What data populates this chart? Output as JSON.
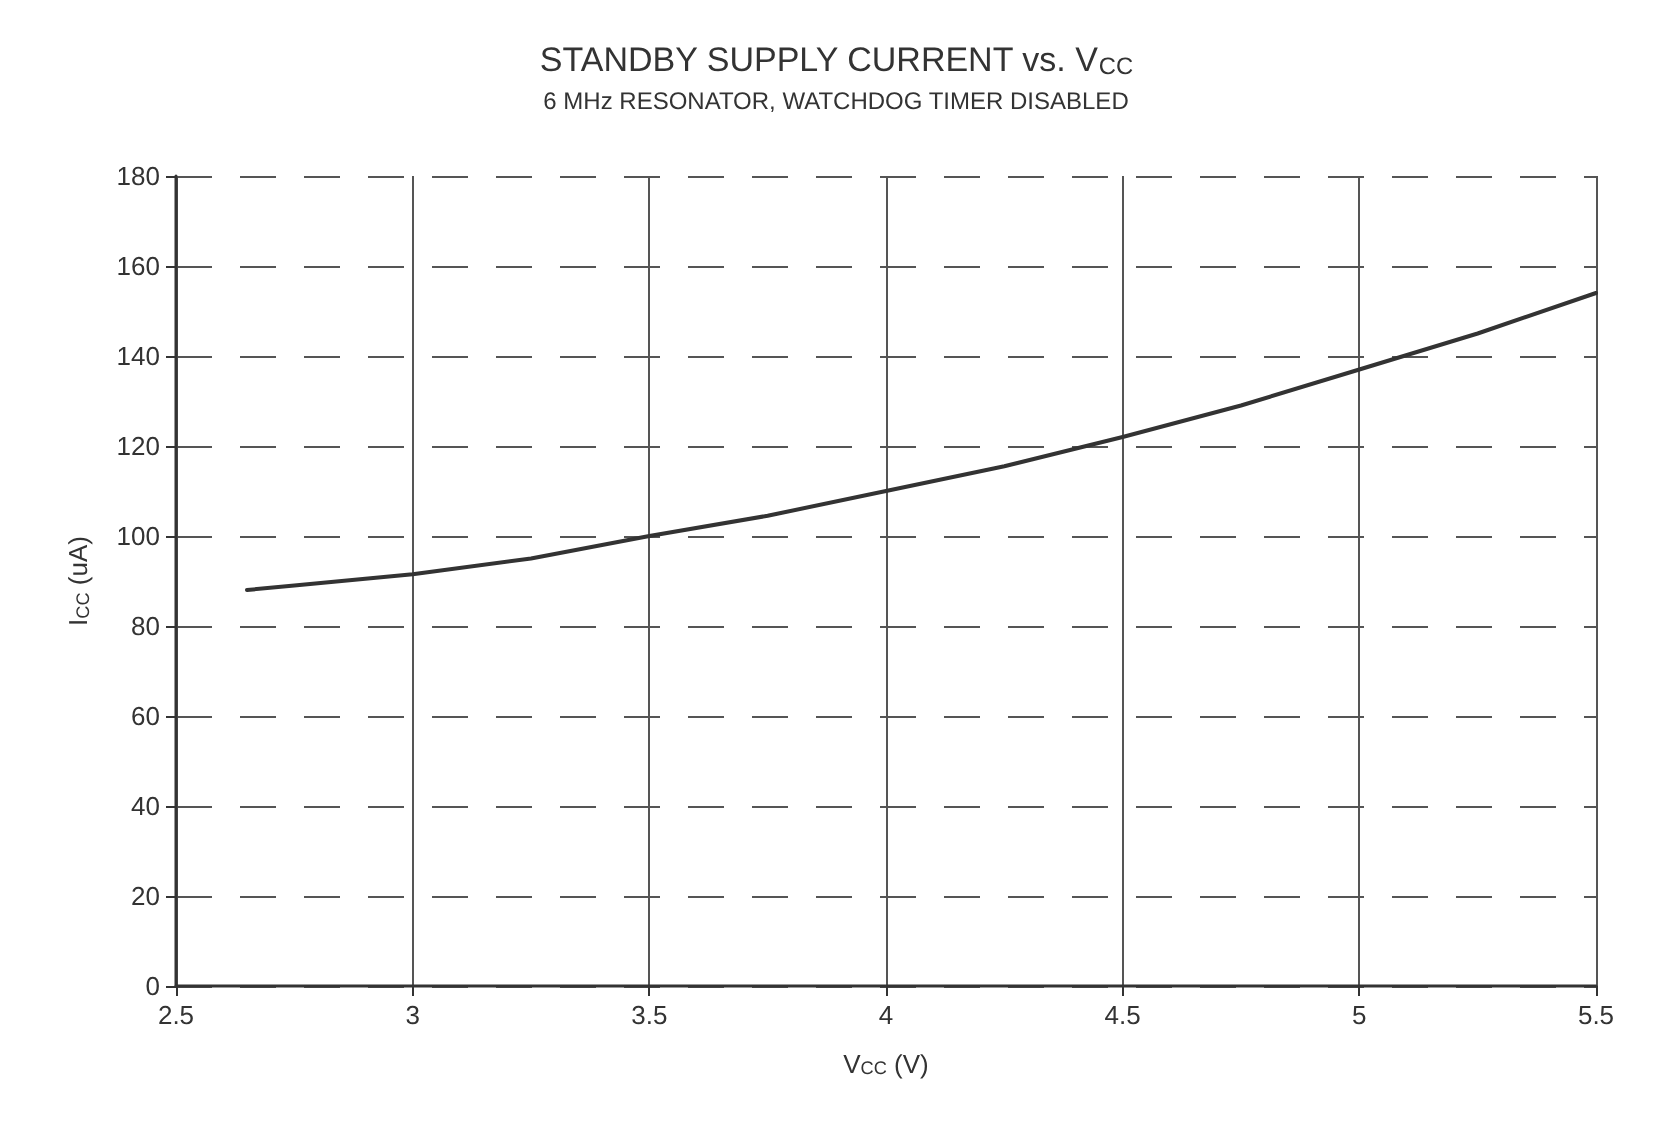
{
  "chart_data": {
    "type": "line",
    "title": "STANDBY SUPPLY CURRENT vs. V$_{CC}$",
    "subtitle": "6 MHz RESONATOR, WATCHDOG TIMER DISABLED",
    "xlabel": "V$_{CC}$ (V)",
    "ylabel": "I$_{CC}$ (uA)",
    "x": [
      2.65,
      2.75,
      3.0,
      3.25,
      3.5,
      3.75,
      4.0,
      4.25,
      4.5,
      4.75,
      5.0,
      5.25,
      5.5
    ],
    "series": [
      {
        "color": "#333333",
        "values": [
          88,
          89,
          91.5,
          95,
          100,
          104.5,
          110,
          115.5,
          122,
          129,
          137,
          145,
          154
        ]
      }
    ],
    "xlim": [
      2.5,
      5.5
    ],
    "xticks": [
      2.5,
      3,
      3.5,
      4,
      4.5,
      5,
      5.5
    ],
    "ylim": [
      0,
      180
    ],
    "yticks": [
      0,
      20,
      40,
      60,
      80,
      100,
      120,
      140,
      160,
      180
    ],
    "grid": true,
    "marker": "none",
    "line_style": "solid"
  }
}
